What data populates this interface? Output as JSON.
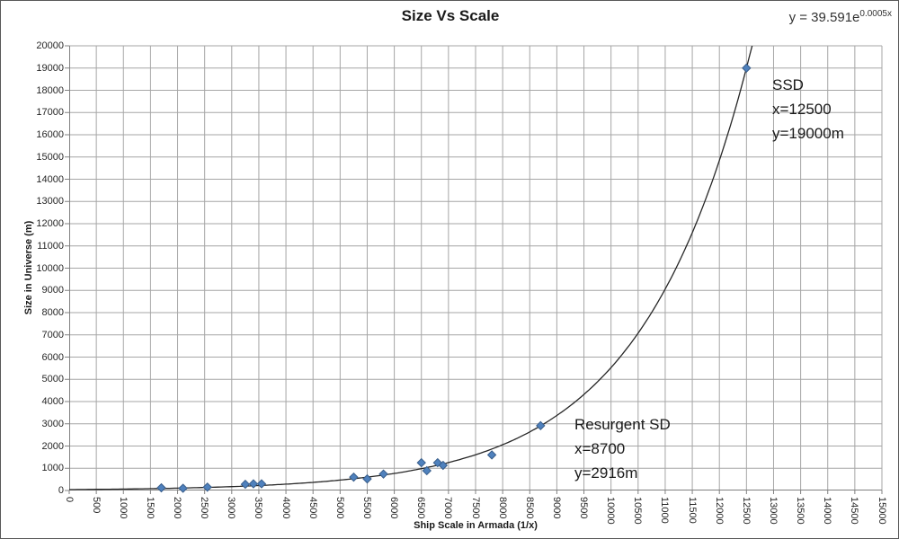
{
  "chart_data": {
    "type": "scatter",
    "title": "Size Vs Scale",
    "equation_base": "y = 39.591e",
    "equation_exponent": "0.0005x",
    "xlabel": "Ship Scale in Armada (1/x)",
    "ylabel": "Size in Universe (m)",
    "xlim": [
      0,
      15000
    ],
    "ylim": [
      0,
      20000
    ],
    "x_tick_step": 500,
    "y_tick_step": 1000,
    "grid": true,
    "legend": false,
    "points": [
      [
        1700,
        120
      ],
      [
        2100,
        100
      ],
      [
        2550,
        150
      ],
      [
        3250,
        280
      ],
      [
        3400,
        300
      ],
      [
        3550,
        300
      ],
      [
        5250,
        600
      ],
      [
        5500,
        520
      ],
      [
        5800,
        740
      ],
      [
        6500,
        1250
      ],
      [
        6600,
        890
      ],
      [
        6800,
        1250
      ],
      [
        6900,
        1130
      ],
      [
        7800,
        1600
      ],
      [
        8700,
        2916
      ],
      [
        12500,
        19000
      ]
    ],
    "trendline": {
      "type": "exponential",
      "equation": "y = 39.591e^0.0005x",
      "a": 39.591,
      "b": 0.0005,
      "b_drawn": 0.0004939
    },
    "annotations": [
      {
        "name": "ssd",
        "lines": [
          "SSD",
          "x=12500",
          "y=19000m"
        ]
      },
      {
        "name": "resurgent-sd",
        "lines": [
          "Resurgent SD",
          "x=8700",
          "y=2916m"
        ]
      }
    ],
    "colors": {
      "marker": "#4F81BD",
      "marker_border": "#385D8A",
      "trendline": "#262626",
      "gridline": "#A6A6A6",
      "axis": "#808080",
      "text": "#1a1a1a"
    }
  }
}
